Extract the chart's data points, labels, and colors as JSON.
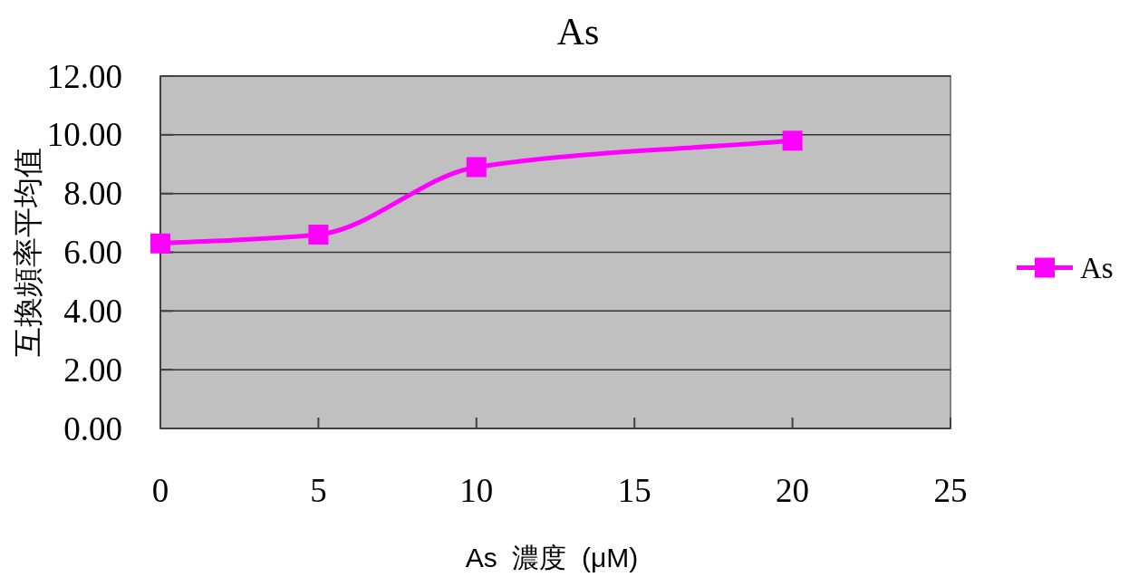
{
  "chart_data": {
    "type": "line",
    "title": "As",
    "xlabel": "As  濃度  (μM)",
    "ylabel": "互換頻率平均值",
    "x": [
      0,
      5,
      10,
      20
    ],
    "series": [
      {
        "name": "As",
        "color": "#ff00ff",
        "values": [
          6.3,
          6.6,
          8.9,
          9.8
        ]
      }
    ],
    "xlim": [
      0,
      25
    ],
    "xticks": [
      0,
      5,
      10,
      15,
      20,
      25
    ],
    "ylim": [
      0,
      12
    ],
    "yticks": [
      {
        "value": 0,
        "label": "0.00"
      },
      {
        "value": 2,
        "label": "2.00"
      },
      {
        "value": 4,
        "label": "4.00"
      },
      {
        "value": 6,
        "label": "6.00"
      },
      {
        "value": 8,
        "label": "8.00"
      },
      {
        "value": 10,
        "label": "10.00"
      },
      {
        "value": 12,
        "label": "12.00"
      }
    ],
    "grid": "y",
    "legend": "right",
    "marker": "square",
    "line_style": "solid"
  }
}
